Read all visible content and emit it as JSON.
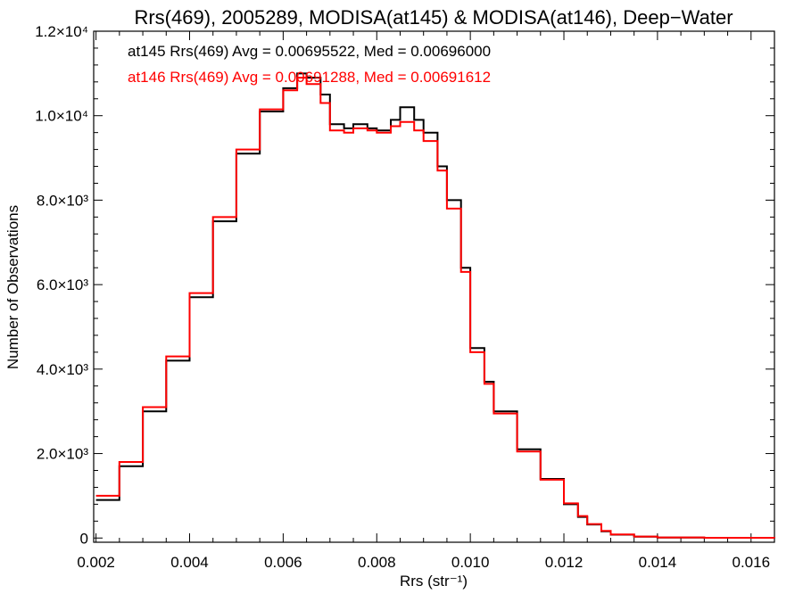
{
  "chart_data": {
    "type": "line",
    "title": "Rrs(469), 2005289, MODISA(at145) & MODISA(at146), Deep−Water",
    "xlabel": "Rrs (str⁻¹)",
    "ylabel": "Number of Observations",
    "xlim": [
      0.00195,
      0.0165
    ],
    "ylim": [
      -100,
      12000
    ],
    "x_ticks": [
      {
        "value": 0.002,
        "label": "0.002"
      },
      {
        "value": 0.004,
        "label": "0.004"
      },
      {
        "value": 0.006,
        "label": "0.006"
      },
      {
        "value": 0.008,
        "label": "0.008"
      },
      {
        "value": 0.01,
        "label": "0.010"
      },
      {
        "value": 0.012,
        "label": "0.012"
      },
      {
        "value": 0.014,
        "label": "0.014"
      },
      {
        "value": 0.016,
        "label": "0.016"
      }
    ],
    "y_ticks": [
      {
        "value": 0,
        "label": "0"
      },
      {
        "value": 2000,
        "label": "2.0×10³"
      },
      {
        "value": 4000,
        "label": "4.0×10³"
      },
      {
        "value": 6000,
        "label": "6.0×10³"
      },
      {
        "value": 8000,
        "label": "8.0×10³"
      },
      {
        "value": 10000,
        "label": "1.0×10⁴"
      },
      {
        "value": 12000,
        "label": "1.2×10⁴"
      }
    ],
    "grid": false,
    "annotations": [
      {
        "text": "at145 Rrs(469) Avg = 0.00695522, Med = 0.00696000",
        "color": "#000000"
      },
      {
        "text": "at146 Rrs(469) Avg = 0.00691288, Med = 0.00691612",
        "color": "#ff0000"
      }
    ],
    "series": [
      {
        "color": "#000000",
        "x": [
          0.002,
          0.0025,
          0.003,
          0.0035,
          0.004,
          0.0045,
          0.005,
          0.0055,
          0.006,
          0.0063,
          0.0065,
          0.0068,
          0.007,
          0.0073,
          0.0075,
          0.0078,
          0.008,
          0.0083,
          0.0085,
          0.0088,
          0.009,
          0.0093,
          0.0095,
          0.0098,
          0.01,
          0.0103,
          0.0105,
          0.011,
          0.0115,
          0.012,
          0.0123,
          0.0125,
          0.0128,
          0.013,
          0.0135,
          0.014,
          0.015,
          0.0165
        ],
        "values": [
          900,
          1700,
          3000,
          4200,
          5700,
          7500,
          9100,
          10100,
          10650,
          11000,
          10900,
          10500,
          9800,
          9700,
          9800,
          9700,
          9650,
          9900,
          10200,
          9900,
          9600,
          8800,
          8000,
          6400,
          4500,
          3700,
          3000,
          2100,
          1400,
          800,
          500,
          320,
          160,
          80,
          30,
          12,
          5,
          0
        ]
      },
      {
        "color": "#ff0000",
        "x": [
          0.002,
          0.0025,
          0.003,
          0.0035,
          0.004,
          0.0045,
          0.005,
          0.0055,
          0.006,
          0.0063,
          0.0065,
          0.0068,
          0.007,
          0.0073,
          0.0075,
          0.0078,
          0.008,
          0.0083,
          0.0085,
          0.0088,
          0.009,
          0.0093,
          0.0095,
          0.0098,
          0.01,
          0.0103,
          0.0105,
          0.011,
          0.0115,
          0.012,
          0.0123,
          0.0125,
          0.0128,
          0.013,
          0.0135,
          0.014,
          0.015,
          0.0165
        ],
        "values": [
          1000,
          1800,
          3100,
          4300,
          5800,
          7600,
          9200,
          10150,
          10600,
          10900,
          10750,
          10300,
          9650,
          9600,
          9700,
          9650,
          9600,
          9750,
          9850,
          9650,
          9400,
          8700,
          7800,
          6300,
          4400,
          3650,
          2950,
          2050,
          1380,
          820,
          520,
          330,
          170,
          85,
          35,
          14,
          6,
          0
        ]
      }
    ]
  }
}
